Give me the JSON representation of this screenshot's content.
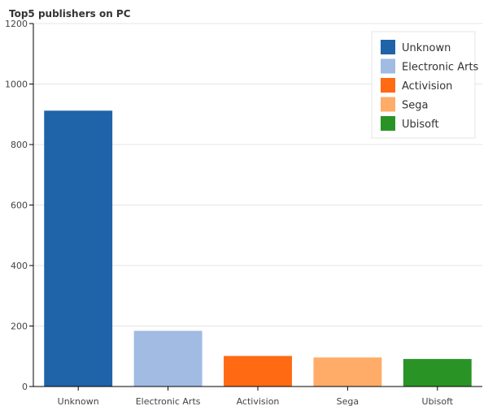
{
  "chart_data": {
    "type": "bar",
    "title": "Top5 publishers on PC",
    "categories": [
      "Unknown",
      "Electronic Arts",
      "Activision",
      "Sega",
      "Ubisoft"
    ],
    "values": [
      912,
      184,
      101,
      96,
      91
    ],
    "colors": [
      "#1f63a8",
      "#a1bbe3",
      "#ff6a13",
      "#ffac68",
      "#2a9325"
    ],
    "xlabel": "",
    "ylabel": "",
    "ylim": [
      0,
      1200
    ],
    "yticks": [
      0,
      200,
      400,
      600,
      800,
      1000,
      1200
    ],
    "grid": true,
    "legend": {
      "position": "top-right",
      "entries": [
        "Unknown",
        "Electronic Arts",
        "Activision",
        "Sega",
        "Ubisoft"
      ]
    }
  }
}
